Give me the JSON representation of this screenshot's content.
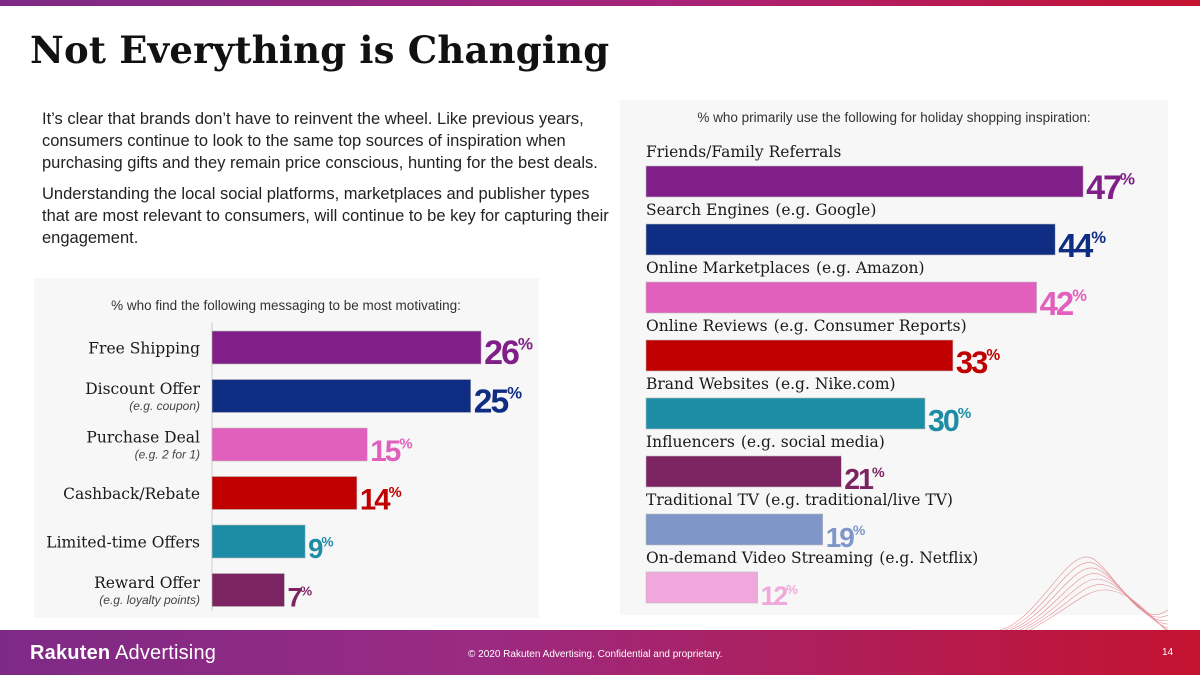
{
  "slide": {
    "title": "Not Everything is Changing",
    "paragraph1": "It’s clear that brands don’t have to reinvent the wheel. Like previous years, consumers continue to look to the same top sources of inspiration when purchasing gifts and they remain price conscious, hunting for the best deals.",
    "paragraph2": "Understanding the local social platforms, marketplaces and publisher types that are most relevant to consumers, will continue to be key for capturing their engagement."
  },
  "footer": {
    "logo_bold": "Rakuten",
    "logo_rest": " Advertising",
    "copyright": "© 2020 Rakuten Advertising. Confidential and proprietary.",
    "page_number": "14"
  },
  "chart_data": [
    {
      "type": "bar",
      "orientation": "horizontal",
      "title": "% who find the following messaging to be most motivating:",
      "categories": [
        "Free Shipping",
        "Discount Offer",
        "Purchase Deal",
        "Cashback/Rebate",
        "Limited-time Offers",
        "Reward Offer"
      ],
      "sublabels": [
        "",
        "(e.g. coupon)",
        "(e.g. 2 for 1)",
        "",
        "",
        "(e.g. loyalty points)"
      ],
      "values": [
        26,
        25,
        15,
        14,
        9,
        7
      ],
      "value_suffix": "%",
      "colors": [
        "#7f1f87",
        "#0f2d82",
        "#e260bd",
        "#c00000",
        "#1d8da6",
        "#7c2461"
      ]
    },
    {
      "type": "bar",
      "orientation": "horizontal",
      "title": "% who primarily use the following for holiday shopping inspiration:",
      "categories": [
        "Friends/Family Referrals",
        "Search Engines",
        "Online Marketplaces",
        "Online Reviews",
        "Brand Websites",
        "Influencers",
        "Traditional TV",
        "On-demand Video Streaming"
      ],
      "sublabels": [
        "",
        "(e.g. Google)",
        "(e.g. Amazon)",
        "(e.g. Consumer Reports)",
        "(e.g. Nike.com)",
        "(e.g. social media)",
        "(e.g. traditional/live TV)",
        "(e.g. Netflix)"
      ],
      "values": [
        47,
        44,
        42,
        33,
        30,
        21,
        19,
        12
      ],
      "value_suffix": "%",
      "colors": [
        "#7f1f87",
        "#0f2d82",
        "#e260bd",
        "#c00000",
        "#1d8da6",
        "#7c2461",
        "#7e96c8",
        "#f0a8dc"
      ]
    }
  ]
}
